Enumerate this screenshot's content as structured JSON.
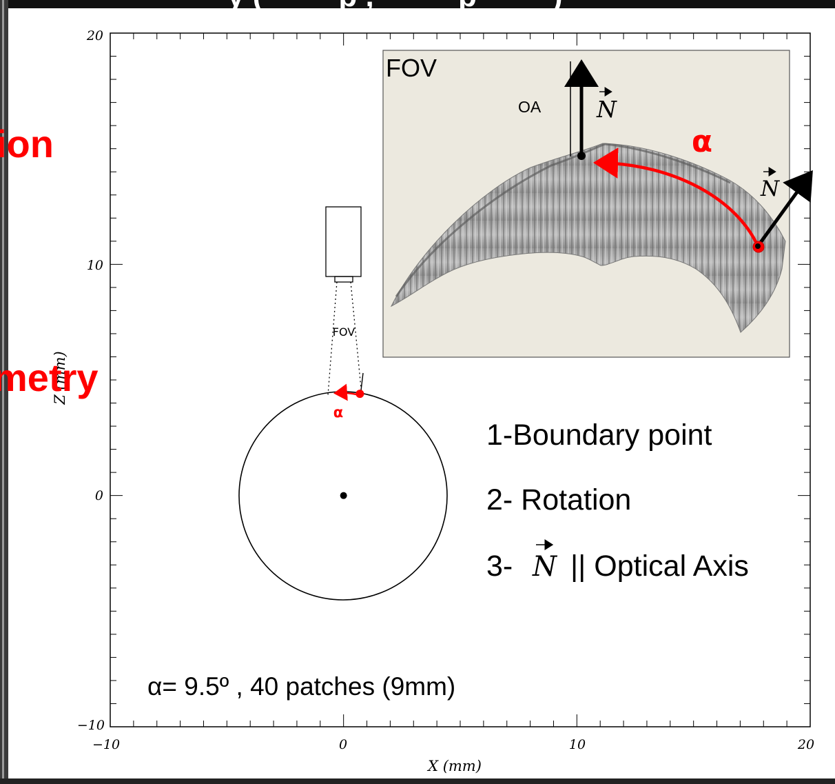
{
  "header_fragment": "y (         p ,          p         )",
  "side_fragments": [
    "ion",
    "metry"
  ],
  "chart_data": {
    "type": "scatter",
    "xlabel": "X (mm)",
    "ylabel": "Z (mm)",
    "xlim": [
      -10,
      20
    ],
    "ylim": [
      -10,
      20
    ],
    "x_ticks": [
      "−10",
      "0",
      "10",
      "20"
    ],
    "y_ticks": [
      "−10",
      "0",
      "10",
      "20"
    ],
    "center_point": {
      "x": 0,
      "z": 0
    },
    "boundary_point": {
      "x": 0.7,
      "z": 4.4
    },
    "boundary_circle_radius_mm": 4.5,
    "fov_label": "FOV",
    "alpha_label": "α",
    "steps": [
      "1-Boundary point",
      "2- Rotation",
      "3-",
      "|| Optical Axis"
    ],
    "normal_symbol": "N",
    "bottom_note": "α= 9.5º ,   40 patches  (9mm)"
  },
  "inset": {
    "label": "FOV",
    "oa_label": "OA",
    "alpha_label": "α",
    "normal_symbol": "N",
    "background": "#ece9df"
  },
  "colors": {
    "accent": "#ff0000",
    "ink": "#000000"
  }
}
